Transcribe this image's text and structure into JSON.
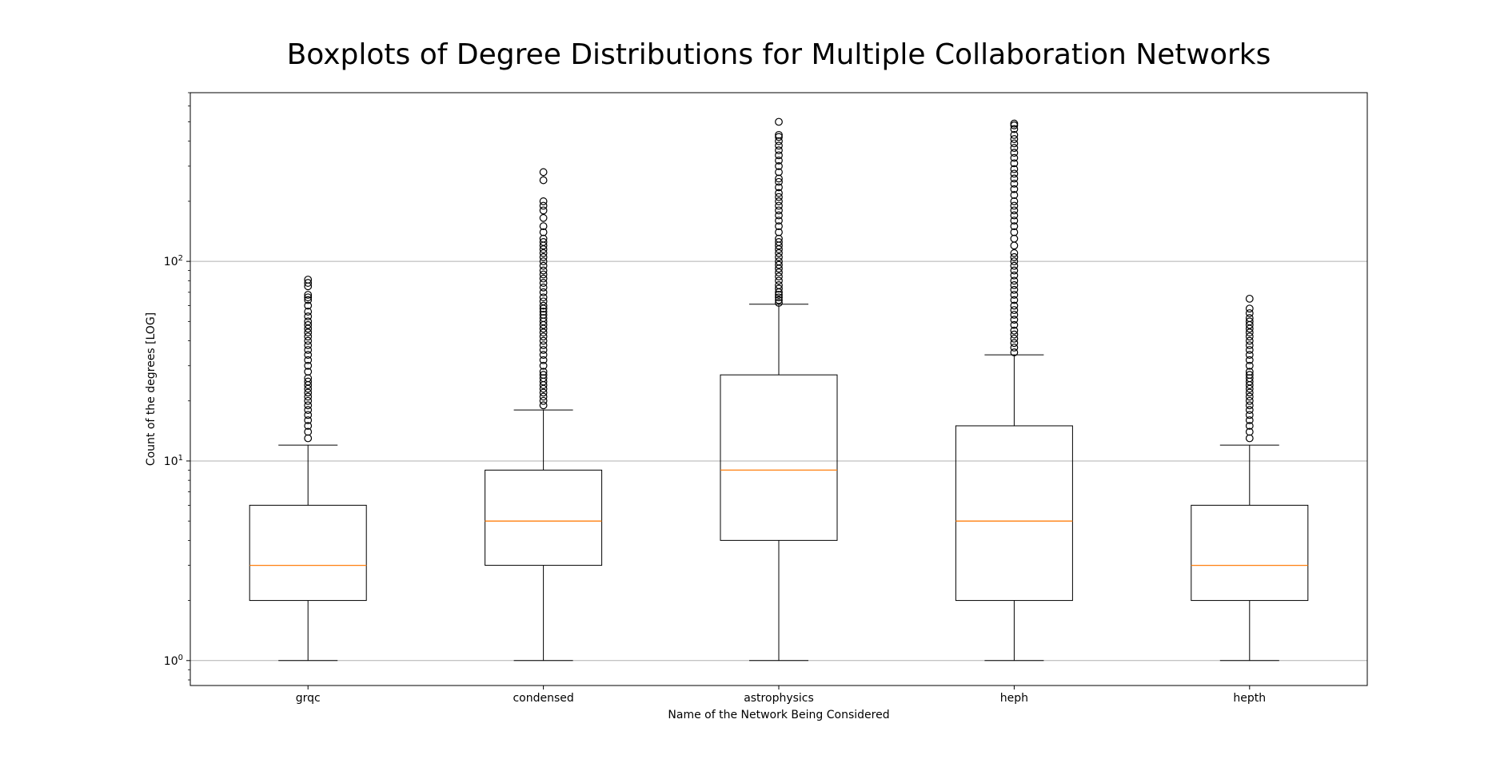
{
  "chart_data": {
    "type": "boxplot",
    "title": "Boxplots of Degree Distributions for Multiple Collaboration Networks",
    "xlabel": "Name of the Network Being Considered",
    "ylabel": "Count of the degrees [LOG]",
    "yscale": "log",
    "ylim": [
      0.75,
      700
    ],
    "yticks": [
      {
        "value": 1,
        "base": "10",
        "exp": "0"
      },
      {
        "value": 10,
        "base": "10",
        "exp": "1"
      },
      {
        "value": 100,
        "base": "10",
        "exp": "2"
      }
    ],
    "grid": "y-major",
    "categories": [
      "grqc",
      "condensed",
      "astrophysics",
      "heph",
      "hepth"
    ],
    "series": [
      {
        "category": "grqc",
        "whisker_low": 1,
        "q1": 2,
        "median": 3,
        "q3": 6,
        "whisker_high": 12,
        "outliers": [
          13,
          14,
          15,
          16,
          17,
          18,
          19,
          20,
          21,
          22,
          23,
          24,
          25,
          26,
          28,
          30,
          32,
          34,
          36,
          38,
          40,
          42,
          44,
          46,
          48,
          50,
          53,
          56,
          60,
          64,
          66,
          68,
          75,
          78,
          81
        ]
      },
      {
        "category": "condensed",
        "whisker_low": 1,
        "q1": 3,
        "median": 5,
        "q3": 9,
        "whisker_high": 18,
        "outliers": [
          19,
          20,
          21,
          22,
          23,
          24,
          25,
          26,
          27,
          28,
          30,
          32,
          34,
          36,
          38,
          40,
          42,
          44,
          46,
          48,
          50,
          52,
          54,
          56,
          58,
          60,
          63,
          66,
          70,
          74,
          78,
          82,
          86,
          90,
          95,
          100,
          105,
          110,
          115,
          120,
          125,
          130,
          140,
          150,
          165,
          180,
          190,
          200,
          255,
          280
        ]
      },
      {
        "category": "astrophysics",
        "whisker_low": 1,
        "q1": 4,
        "median": 9,
        "q3": 27,
        "whisker_high": 61,
        "outliers": [
          62,
          64,
          66,
          68,
          70,
          73,
          76,
          80,
          84,
          88,
          92,
          96,
          100,
          105,
          110,
          115,
          120,
          125,
          130,
          140,
          150,
          160,
          170,
          180,
          190,
          200,
          210,
          220,
          235,
          250,
          260,
          280,
          300,
          320,
          340,
          360,
          380,
          400,
          420,
          430,
          500
        ]
      },
      {
        "category": "heph",
        "whisker_low": 1,
        "q1": 2,
        "median": 5,
        "q3": 15,
        "whisker_high": 34,
        "outliers": [
          35,
          37,
          39,
          41,
          43,
          45,
          48,
          51,
          54,
          57,
          60,
          64,
          68,
          72,
          76,
          80,
          85,
          90,
          95,
          100,
          105,
          110,
          120,
          130,
          140,
          150,
          160,
          170,
          180,
          190,
          200,
          215,
          230,
          245,
          260,
          275,
          290,
          310,
          330,
          350,
          370,
          390,
          410,
          430,
          460,
          480,
          490
        ]
      },
      {
        "category": "hepth",
        "whisker_low": 1,
        "q1": 2,
        "median": 3,
        "q3": 6,
        "whisker_high": 12,
        "outliers": [
          13,
          14,
          15,
          16,
          17,
          18,
          19,
          20,
          21,
          22,
          23,
          24,
          25,
          26,
          27,
          28,
          30,
          32,
          34,
          36,
          38,
          40,
          42,
          44,
          46,
          48,
          50,
          52,
          55,
          58,
          65
        ]
      }
    ],
    "colors": {
      "box": "#000000",
      "median": "#ff7f0e",
      "grid": "#b0b0b0",
      "outlier_edge": "#000000"
    }
  }
}
